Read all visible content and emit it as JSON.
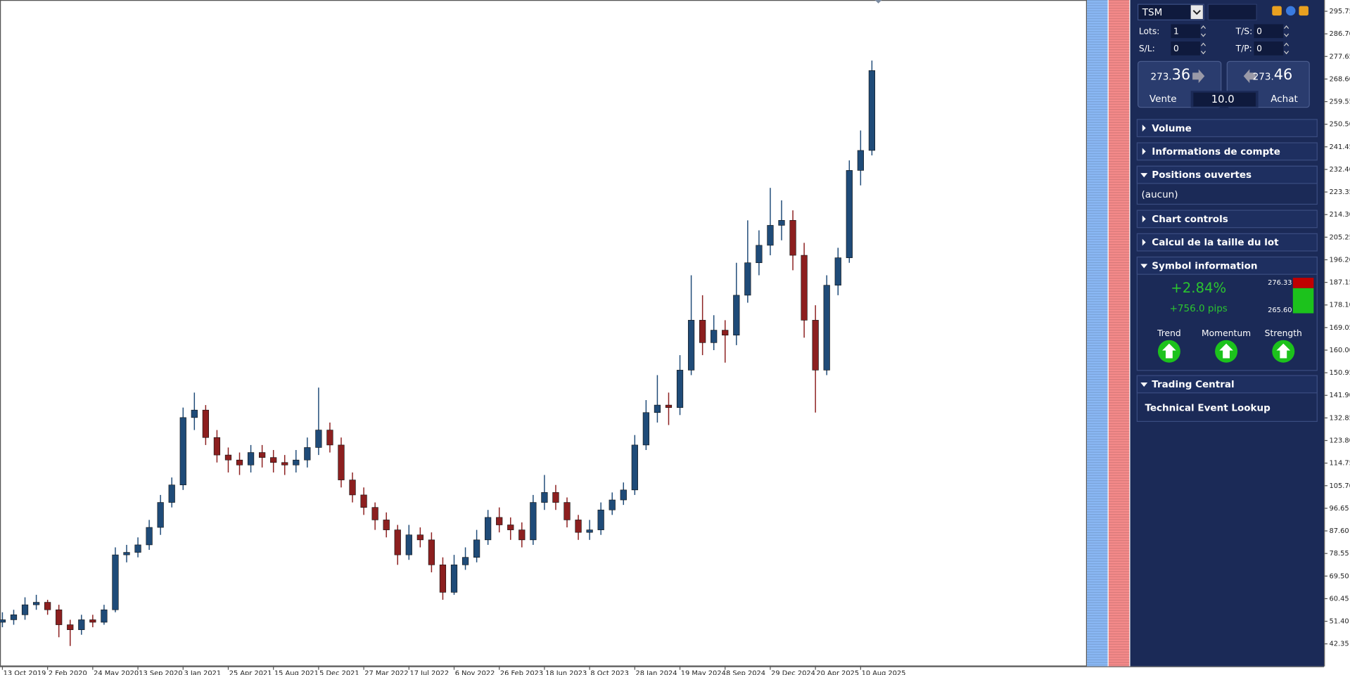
{
  "chart_data": {
    "type": "candlestick",
    "x": [
      "2019-10-13",
      "2019-11-10",
      "2019-12-08",
      "2020-01-05",
      "2020-02-02",
      "2020-03-01",
      "2020-03-29",
      "2020-04-26",
      "2020-05-24",
      "2020-06-21",
      "2020-07-19",
      "2020-08-16",
      "2020-09-13",
      "2020-10-11",
      "2020-11-08",
      "2020-12-06",
      "2021-01-03",
      "2021-01-31",
      "2021-02-28",
      "2021-03-28",
      "2021-04-25",
      "2021-05-23",
      "2021-06-20",
      "2021-07-18",
      "2021-08-15",
      "2021-09-12",
      "2021-10-10",
      "2021-11-07",
      "2021-12-05",
      "2022-01-02",
      "2022-01-30",
      "2022-02-27",
      "2022-03-27",
      "2022-04-24",
      "2022-05-22",
      "2022-06-19",
      "2022-07-17",
      "2022-08-14",
      "2022-09-11",
      "2022-10-09",
      "2022-11-06",
      "2022-12-04",
      "2023-01-01",
      "2023-01-29",
      "2023-02-26",
      "2023-03-26",
      "2023-04-23",
      "2023-05-21",
      "2023-06-18",
      "2023-07-16",
      "2023-08-13",
      "2023-09-10",
      "2023-10-08",
      "2023-11-05",
      "2023-12-03",
      "2023-12-31",
      "2024-01-28",
      "2024-02-25",
      "2024-03-24",
      "2024-04-21",
      "2024-05-19",
      "2024-06-16",
      "2024-07-14",
      "2024-08-11",
      "2024-09-08",
      "2024-10-06",
      "2024-11-03",
      "2024-12-01",
      "2024-12-29",
      "2025-01-26",
      "2025-02-23",
      "2025-03-23",
      "2025-04-20",
      "2025-05-18",
      "2025-06-15",
      "2025-07-13",
      "2025-08-10",
      "2025-09-07"
    ],
    "open": [
      51,
      52,
      54,
      58,
      59,
      56,
      50,
      48,
      52,
      51,
      56,
      78,
      79,
      82,
      89,
      99,
      106,
      133,
      136,
      125,
      118,
      116,
      114,
      119,
      117,
      115,
      114,
      116,
      121,
      128,
      122,
      108,
      102,
      97,
      92,
      88,
      78,
      86,
      84,
      74,
      63,
      74,
      77,
      84,
      93,
      90,
      88,
      84,
      99,
      103,
      99,
      92,
      87,
      88,
      96,
      100,
      104,
      122,
      135,
      138,
      137,
      152,
      172,
      163,
      168,
      166,
      182,
      195,
      202,
      210,
      212,
      198,
      172,
      152,
      186,
      197,
      232,
      240
    ],
    "high": [
      55,
      56,
      61,
      62,
      60,
      58,
      52,
      54,
      54,
      58,
      81,
      82,
      85,
      92,
      102,
      109,
      137,
      143,
      138,
      128,
      121,
      119,
      122,
      122,
      120,
      118,
      120,
      125,
      145,
      131,
      125,
      111,
      105,
      99,
      95,
      90,
      90,
      89,
      87,
      77,
      78,
      81,
      88,
      96,
      97,
      93,
      91,
      102,
      110,
      106,
      101,
      94,
      92,
      99,
      103,
      107,
      126,
      140,
      150,
      143,
      158,
      190,
      182,
      174,
      172,
      195,
      212,
      208,
      225,
      220,
      216,
      203,
      178,
      190,
      201,
      236,
      248,
      276
    ],
    "low": [
      49,
      50,
      52,
      56,
      54,
      45,
      41.5,
      46,
      49,
      50,
      55,
      75,
      77,
      80,
      86,
      97,
      104,
      128,
      122,
      115,
      111,
      110,
      111,
      113,
      111,
      110,
      111,
      113,
      118,
      119,
      105,
      99,
      94,
      88,
      85,
      74,
      76,
      81,
      71,
      60,
      62,
      72,
      75,
      82,
      87,
      84,
      81,
      82,
      96,
      96,
      89,
      84,
      84,
      86,
      94,
      98,
      102,
      120,
      131,
      130,
      134,
      150,
      158,
      160,
      155,
      162,
      179,
      190,
      198,
      204,
      192,
      165,
      135,
      150,
      182,
      195,
      226,
      238
    ],
    "close": [
      52,
      54,
      58,
      59,
      56,
      50,
      48,
      52,
      51,
      56,
      78,
      79,
      82,
      89,
      99,
      106,
      133,
      136,
      125,
      118,
      116,
      114,
      119,
      117,
      115,
      114,
      116,
      121,
      128,
      122,
      108,
      102,
      97,
      92,
      88,
      78,
      86,
      84,
      74,
      63,
      74,
      77,
      84,
      93,
      90,
      88,
      84,
      99,
      103,
      99,
      92,
      87,
      88,
      96,
      100,
      104,
      122,
      135,
      138,
      137,
      152,
      172,
      163,
      168,
      166,
      182,
      195,
      202,
      210,
      212,
      198,
      172,
      152,
      186,
      197,
      232,
      240,
      272
    ],
    "up_color": "#1f4b78",
    "down_color": "#8c1f1f",
    "xlim": [
      "2019-10-07",
      "2027-02-20"
    ],
    "ylim": [
      33.34,
      300.26
    ],
    "yticks": [
      295.75,
      {
        "value": 286.7,
        "label": "286.70"
      },
      277.65,
      {
        "value": 268.6,
        "label": "268.60"
      },
      259.55,
      {
        "value": 250.5,
        "label": "250.50"
      },
      241.45,
      {
        "value": 232.4,
        "label": "232.40"
      },
      223.35,
      {
        "value": 214.3,
        "label": "214.30"
      },
      205.25,
      {
        "value": 196.2,
        "label": "196.20"
      },
      187.15,
      {
        "value": 178.1,
        "label": "178.10"
      },
      169.05,
      {
        "value": 160,
        "label": "160.00"
      },
      150.95,
      {
        "value": 141.9,
        "label": "141.90"
      },
      132.85,
      {
        "value": 123.8,
        "label": "123.80"
      },
      114.75,
      {
        "value": 105.7,
        "label": "105.70"
      },
      96.65,
      {
        "value": 87.6,
        "label": "87.60"
      },
      78.55,
      {
        "value": 69.5,
        "label": "69.50"
      },
      60.45,
      {
        "value": 51.4,
        "label": "51.40"
      },
      42.35
    ],
    "xticks": [
      {
        "value": "2019-10-13",
        "label": "13 Oct 2019"
      },
      {
        "value": "2020-02-02",
        "label": "2 Feb 2020"
      },
      {
        "value": "2020-05-24",
        "label": "24 May 2020"
      },
      {
        "value": "2020-09-13",
        "label": "13 Sep 2020"
      },
      {
        "value": "2021-01-03",
        "label": "3 Jan 2021"
      },
      {
        "value": "2021-04-25",
        "label": "25 Apr 2021"
      },
      {
        "value": "2021-08-15",
        "label": "15 Aug 2021"
      },
      {
        "value": "2021-12-05",
        "label": "5 Dec 2021"
      },
      {
        "value": "2022-03-27",
        "label": "27 Mar 2022"
      },
      {
        "value": "2022-07-17",
        "label": "17 Jul 2022"
      },
      {
        "value": "2022-11-06",
        "label": "6 Nov 2022"
      },
      {
        "value": "2023-02-26",
        "label": "26 Feb 2023"
      },
      {
        "value": "2023-06-18",
        "label": "18 Jun 2023"
      },
      {
        "value": "2023-10-08",
        "label": "8 Oct 2023"
      },
      {
        "value": "2024-01-28",
        "label": "28 Jan 2024"
      },
      {
        "value": "2024-05-19",
        "label": "19 May 2024"
      },
      {
        "value": "2024-09-08",
        "label": "8 Sep 2024"
      },
      {
        "value": "2024-12-29",
        "label": "29 Dec 2024"
      },
      {
        "value": "2025-04-20",
        "label": "20 Apr 2025"
      },
      {
        "value": "2025-08-10",
        "label": "10 Aug 2025"
      }
    ]
  },
  "trade_panel": {
    "symbol": "TSM",
    "lots_label": "Lots:",
    "lots": "1",
    "ts_label": "T/S:",
    "ts": "0",
    "sl_label": "S/L:",
    "sl": "0",
    "tp_label": "T/P:",
    "tp": "0",
    "sell": {
      "price_small": "273.",
      "price_big": "36",
      "label": "Vente"
    },
    "buy": {
      "price_small": "273.",
      "price_big": "46",
      "label": "Achat"
    },
    "spread": "10.0"
  },
  "sections": [
    {
      "title": "Volume"
    },
    {
      "title": "Informations de compte"
    },
    {
      "title": "Positions ouvertes",
      "content": "(aucun)"
    },
    {
      "title": "Chart controls"
    },
    {
      "title": "Calcul de la taille du lot"
    },
    {
      "title": "Symbol information"
    },
    {
      "title": "Trading Central"
    }
  ],
  "symbol_info": {
    "change_percent": "+2.84%",
    "change_pips": "+756.0 pips",
    "high": "276.33",
    "low": "265.60",
    "indicators": [
      "Trend",
      "Momentum",
      "Strength"
    ]
  },
  "trading_central": {
    "link": "Technical Event Lookup"
  }
}
